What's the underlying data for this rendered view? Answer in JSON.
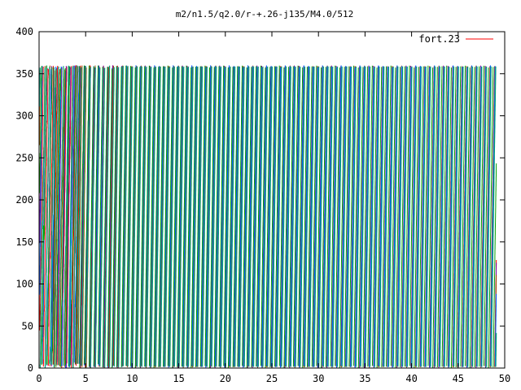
{
  "chart_data": {
    "type": "line",
    "title": "m2/n1.5/q2.0/r-+.26-j135/M4.0/512",
    "xlabel": "",
    "ylabel": "",
    "xlim": [
      0,
      50
    ],
    "ylim": [
      0,
      400
    ],
    "x_ticks": [
      "0",
      "5",
      "10",
      "15",
      "20",
      "25",
      "30",
      "35",
      "40",
      "45",
      "50"
    ],
    "y_ticks": [
      "0",
      "50",
      "100",
      "150",
      "200",
      "250",
      "300",
      "350",
      "400"
    ],
    "grid": false,
    "legend_position": "top-right",
    "legend": [
      {
        "label": "fort.23",
        "color": "#ff0000"
      }
    ],
    "colors": {
      "red": "#ff0000",
      "green": "#00a000",
      "blue": "#0066ff",
      "teal": "#00a080",
      "brown": "#a05000",
      "purple": "#8000a0"
    },
    "description": "phase curves wrapping between 0 and 360; chaotic for x<10, then regular oscillation with period ~0.5",
    "x_end": 49.1,
    "wrap_max": 360,
    "transient_end": 10,
    "period": 0.5
  }
}
